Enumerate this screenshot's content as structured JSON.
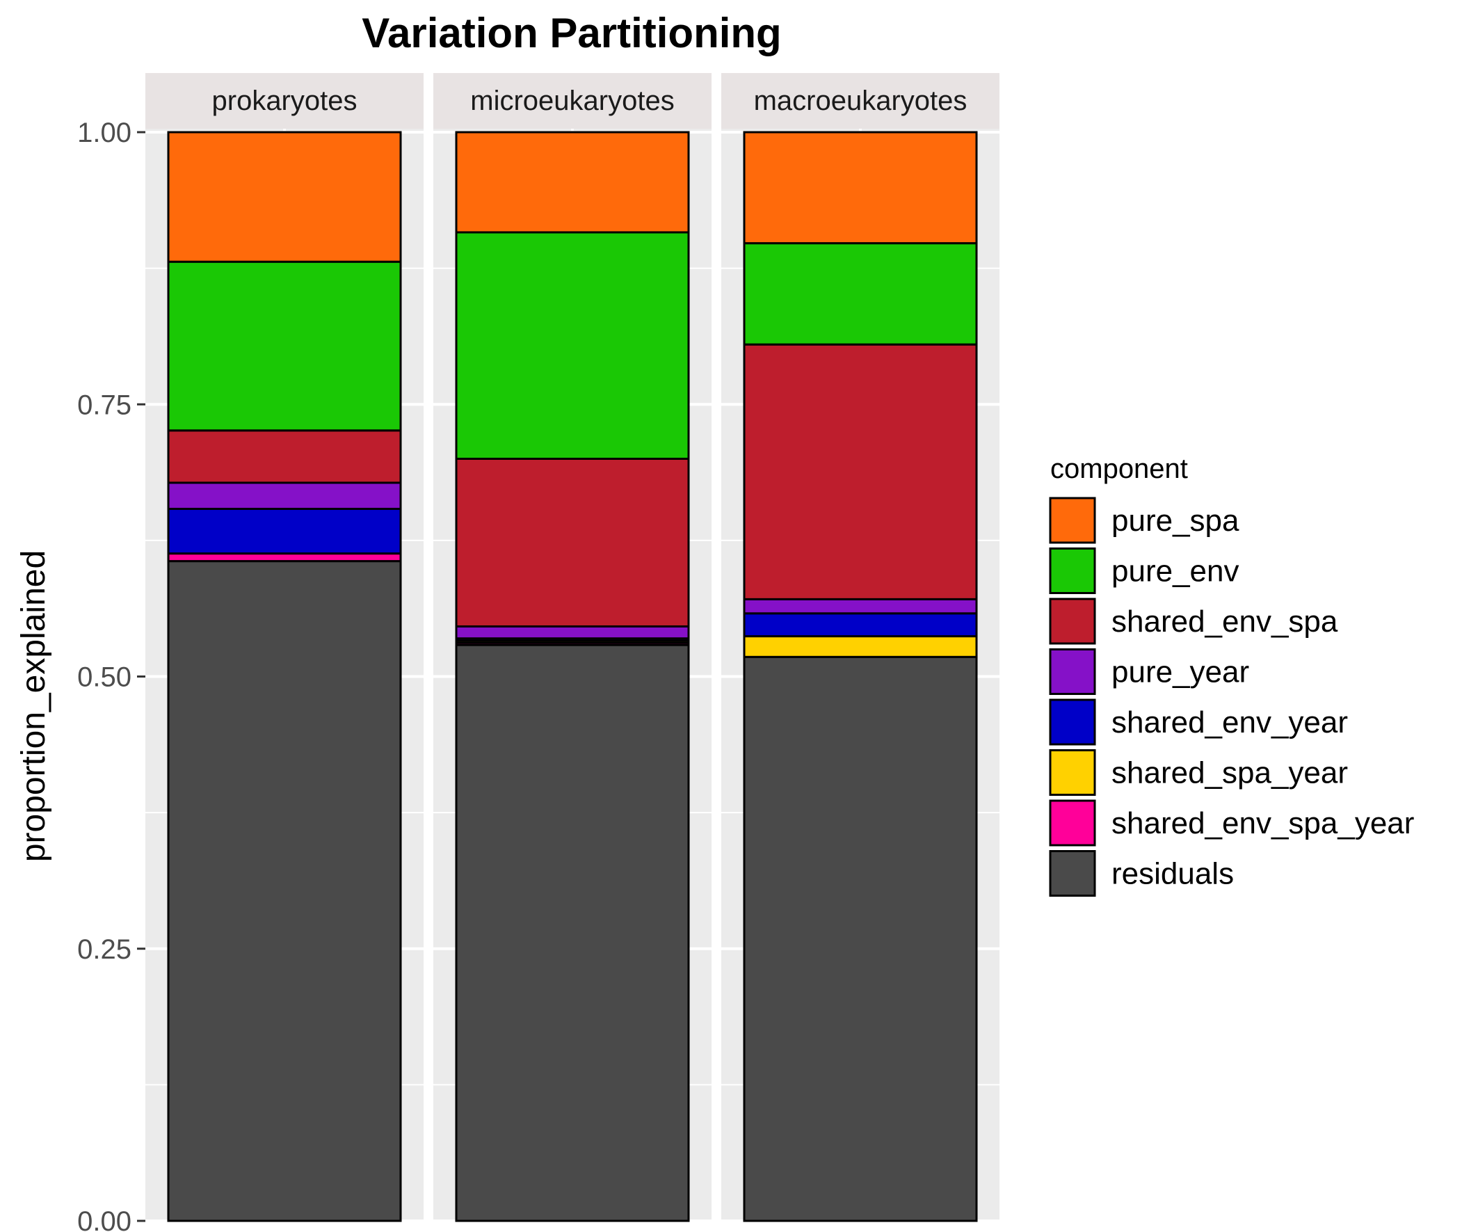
{
  "chart_data": {
    "type": "bar",
    "stacked": true,
    "title": "Variation Partitioning",
    "xlabel": "",
    "ylabel": "proportion_explained",
    "ylim": [
      0,
      1
    ],
    "yticks": [
      "0.00",
      "0.25",
      "0.50",
      "0.75",
      "1.00"
    ],
    "grid": true,
    "facets": [
      "prokaryotes",
      "microeukaryotes",
      "macroeukaryotes"
    ],
    "legend": {
      "title": "component",
      "position": "right"
    },
    "series": [
      {
        "name": "residuals",
        "color": "#4a4a4a",
        "values": [
          0.606,
          0.529,
          0.518
        ]
      },
      {
        "name": "shared_env_spa_year",
        "color": "#ff0099",
        "values": [
          0.007,
          0.002,
          0.0
        ]
      },
      {
        "name": "shared_spa_year",
        "color": "#ffd100",
        "values": [
          0.0,
          0.002,
          0.019
        ]
      },
      {
        "name": "shared_env_year",
        "color": "#0000c8",
        "values": [
          0.041,
          0.002,
          0.021
        ]
      },
      {
        "name": "pure_year",
        "color": "#8511c8",
        "values": [
          0.024,
          0.011,
          0.013
        ]
      },
      {
        "name": "shared_env_spa",
        "color": "#be1e2d",
        "values": [
          0.048,
          0.154,
          0.234
        ]
      },
      {
        "name": "pure_env",
        "color": "#1ac805",
        "values": [
          0.155,
          0.208,
          0.093
        ]
      },
      {
        "name": "pure_spa",
        "color": "#ff6a0b",
        "values": [
          0.119,
          0.092,
          0.102
        ]
      }
    ],
    "legend_order": [
      "pure_spa",
      "pure_env",
      "shared_env_spa",
      "pure_year",
      "shared_env_year",
      "shared_spa_year",
      "shared_env_spa_year",
      "residuals"
    ]
  }
}
